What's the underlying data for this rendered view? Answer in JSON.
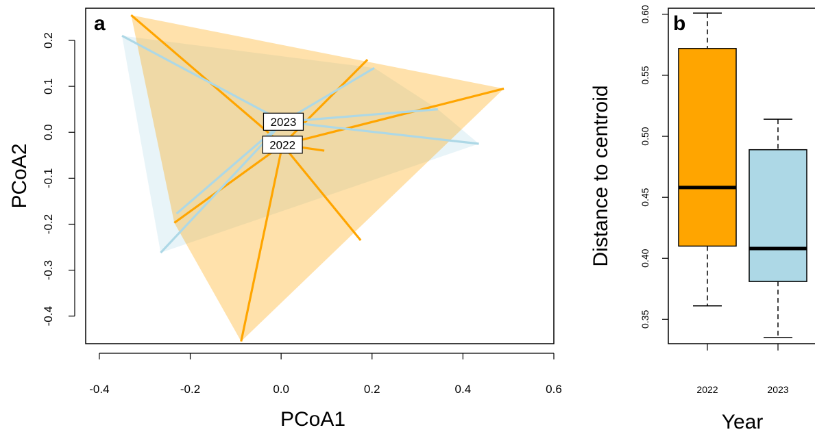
{
  "chart_data": [
    {
      "panel": "a",
      "type": "scatter",
      "subtype": "PCoA ordination with convex hulls and spider lines to group centroids",
      "xlabel": "PCoA1",
      "ylabel": "PCoA2",
      "xlim": [
        -0.43,
        0.6
      ],
      "ylim": [
        -0.46,
        0.27
      ],
      "xticks": [
        -0.4,
        -0.2,
        0.0,
        0.2,
        0.4,
        0.6
      ],
      "xtick_labels": [
        "-0.4",
        "-0.2",
        "0.0",
        "0.2",
        "0.4",
        "0.6"
      ],
      "yticks": [
        -0.4,
        -0.3,
        -0.2,
        -0.1,
        0.0,
        0.1,
        0.2
      ],
      "ytick_labels": [
        "-0.4",
        "-0.3",
        "-0.2",
        "-0.1",
        "0.0",
        "0.1",
        "0.2"
      ],
      "series": [
        {
          "name": "2022",
          "color": "#FFA500",
          "hull_color": "#FFDDA8",
          "centroid": [
            0.003,
            -0.027
          ],
          "points": [
            [
              -0.33,
              0.255
            ],
            [
              0.19,
              0.158
            ],
            [
              0.49,
              0.095
            ],
            [
              0.095,
              -0.04
            ],
            [
              -0.235,
              -0.197
            ],
            [
              0.175,
              -0.235
            ],
            [
              -0.088,
              -0.455
            ]
          ],
          "hull_order": [
            0,
            2,
            6,
            4
          ]
        },
        {
          "name": "2023",
          "color": "#ADD8E6",
          "hull_color": "#DCEEF5",
          "centroid": [
            0.005,
            0.023
          ],
          "points": [
            [
              -0.35,
              0.21
            ],
            [
              0.205,
              0.14
            ],
            [
              0.345,
              0.05
            ],
            [
              0.435,
              -0.025
            ],
            [
              -0.23,
              -0.177
            ],
            [
              -0.265,
              -0.262
            ]
          ],
          "hull_order": [
            0,
            1,
            2,
            3,
            5
          ]
        }
      ],
      "annotations": [
        "2022",
        "2023"
      ]
    },
    {
      "panel": "b",
      "type": "box",
      "xlabel": "Year",
      "ylabel": "Distance to centroid",
      "categories": [
        "2022",
        "2023"
      ],
      "ylim": [
        0.33,
        0.605
      ],
      "yticks": [
        0.35,
        0.4,
        0.45,
        0.5,
        0.55,
        0.6
      ],
      "ytick_labels": [
        "0.35",
        "0.40",
        "0.45",
        "0.50",
        "0.55",
        "0.60"
      ],
      "boxes": [
        {
          "name": "2022",
          "color": "#FFA500",
          "min": 0.361,
          "q1": 0.41,
          "median": 0.458,
          "q3": 0.572,
          "max": 0.601
        },
        {
          "name": "2023",
          "color": "#ADD8E6",
          "min": 0.335,
          "q1": 0.381,
          "median": 0.408,
          "q3": 0.489,
          "max": 0.514
        }
      ]
    }
  ],
  "panel_labels": {
    "a": "a",
    "b": "b"
  }
}
